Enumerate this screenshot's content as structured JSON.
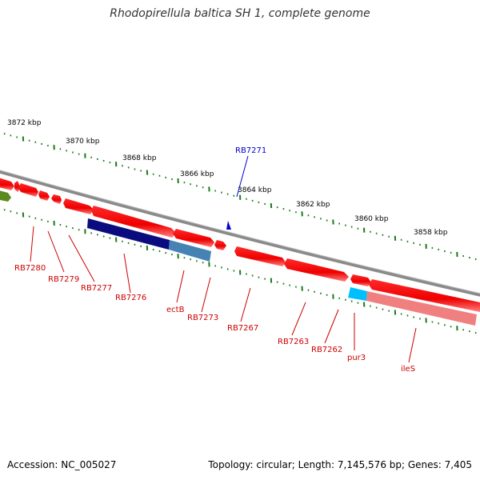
{
  "title": "Rhodopirellula baltica SH 1, complete genome",
  "footer": {
    "accession": "Accession: NC_005027",
    "topology": "Topology: circular; Length: 7,145,576 bp; Genes: 7,405"
  },
  "colors": {
    "backbone": "#808080",
    "gene_red": "#ff0000",
    "gene_pink": "#f08080",
    "gene_navy": "#000080",
    "gene_steel": "#4682b4",
    "gene_cyan": "#00bfff",
    "gene_olive": "#5b8a1e",
    "tick_green": "#1a7a1a",
    "label_red": "#cc0000",
    "label_blue": "#0000cc"
  },
  "scale": [
    "3872 kbp",
    "3870 kbp",
    "3868 kbp",
    "3866 kbp",
    "3864 kbp",
    "3862 kbp",
    "3860 kbp",
    "3858 kbp"
  ],
  "gene_labels": {
    "forward": [
      "RB7271"
    ],
    "reverse": [
      "RB7280",
      "RB7279",
      "RB7277",
      "RB7276",
      "ectB",
      "RB7273",
      "RB7267",
      "RB7263",
      "RB7262",
      "pur3",
      "ileS"
    ]
  }
}
